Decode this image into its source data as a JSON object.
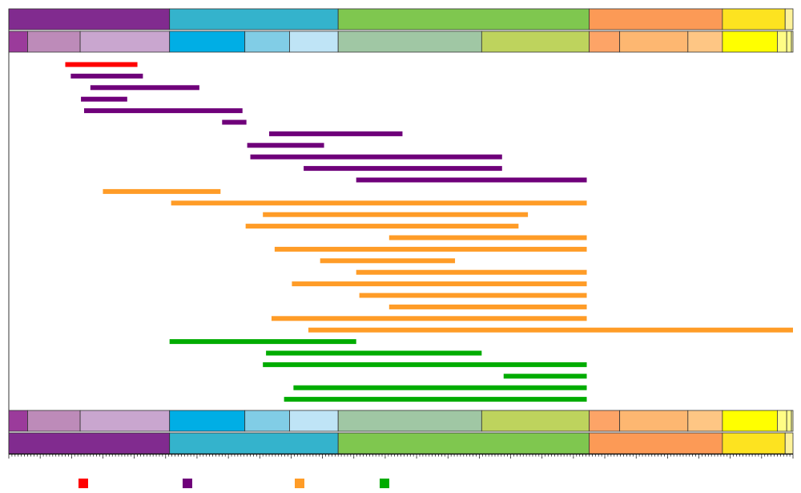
{
  "chart_data": {
    "type": "gantt-range",
    "title": "",
    "xlabel": "",
    "ylabel": "",
    "xlim": [
      0,
      100
    ],
    "grid": false,
    "timescale": {
      "period_bands": [
        {
          "start": 0.0,
          "end": 20.5,
          "color": "#812b8f"
        },
        {
          "start": 20.5,
          "end": 42.0,
          "color": "#34b3cc"
        },
        {
          "start": 42.0,
          "end": 74.0,
          "color": "#7fc74f"
        },
        {
          "start": 74.0,
          "end": 91.0,
          "color": "#fc9a56"
        },
        {
          "start": 91.0,
          "end": 99.0,
          "color": "#fde320"
        },
        {
          "start": 99.0,
          "end": 100.0,
          "color": "#fdf29a"
        }
      ],
      "epoch_bands": [
        {
          "start": 0.0,
          "end": 2.4,
          "color": "#9b3b9b"
        },
        {
          "start": 2.4,
          "end": 9.1,
          "color": "#bd8bb9"
        },
        {
          "start": 9.1,
          "end": 20.5,
          "color": "#c9a6cf"
        },
        {
          "start": 20.5,
          "end": 30.1,
          "color": "#00aee5"
        },
        {
          "start": 30.1,
          "end": 35.8,
          "color": "#81cde6"
        },
        {
          "start": 35.8,
          "end": 42.0,
          "color": "#bfe4f6"
        },
        {
          "start": 42.0,
          "end": 60.3,
          "color": "#a0c7a4"
        },
        {
          "start": 60.3,
          "end": 74.0,
          "color": "#bed35d"
        },
        {
          "start": 74.0,
          "end": 77.9,
          "color": "#fda467"
        },
        {
          "start": 77.9,
          "end": 86.6,
          "color": "#fdb771"
        },
        {
          "start": 86.6,
          "end": 91.0,
          "color": "#fec684"
        },
        {
          "start": 91.0,
          "end": 98.0,
          "color": "#ffff00"
        },
        {
          "start": 98.0,
          "end": 99.2,
          "color": "#fffd85"
        },
        {
          "start": 99.2,
          "end": 99.8,
          "color": "#ffff90"
        },
        {
          "start": 99.8,
          "end": 100.0,
          "color": "#fffbb0"
        }
      ]
    },
    "series": [
      {
        "color": "#ff0000",
        "ranges": [
          [
            7.2,
            16.4
          ]
        ]
      },
      {
        "color": "#6f007a",
        "ranges": [
          [
            7.9,
            17.1
          ],
          [
            10.4,
            24.3
          ],
          [
            9.2,
            15.1
          ],
          [
            9.6,
            29.8
          ],
          [
            27.2,
            30.3
          ],
          [
            33.2,
            50.2
          ],
          [
            30.4,
            40.2
          ],
          [
            30.8,
            62.9
          ],
          [
            37.6,
            62.9
          ],
          [
            44.3,
            73.7
          ]
        ]
      },
      {
        "color": "#ff9c27",
        "ranges": [
          [
            12.0,
            27.0
          ],
          [
            20.7,
            73.7
          ],
          [
            32.4,
            66.2
          ],
          [
            30.2,
            65.0
          ],
          [
            48.5,
            73.7
          ],
          [
            33.9,
            73.7
          ],
          [
            39.7,
            56.9
          ],
          [
            44.3,
            73.7
          ],
          [
            36.1,
            73.7
          ],
          [
            44.7,
            73.7
          ],
          [
            48.5,
            73.7
          ],
          [
            33.5,
            73.7
          ],
          [
            38.2,
            100.0
          ]
        ]
      },
      {
        "color": "#00ac00",
        "ranges": [
          [
            20.5,
            44.3
          ],
          [
            32.8,
            60.3
          ],
          [
            32.4,
            73.7
          ],
          [
            63.1,
            73.7
          ],
          [
            36.3,
            73.7
          ],
          [
            35.1,
            73.7
          ]
        ]
      }
    ],
    "legend": {
      "placement": "bottom-left",
      "entries": [
        {
          "color": "#ff0000",
          "label": ""
        },
        {
          "color": "#6f007a",
          "label": ""
        },
        {
          "color": "#ff9c27",
          "label": ""
        },
        {
          "color": "#00ac00",
          "label": ""
        }
      ]
    }
  }
}
